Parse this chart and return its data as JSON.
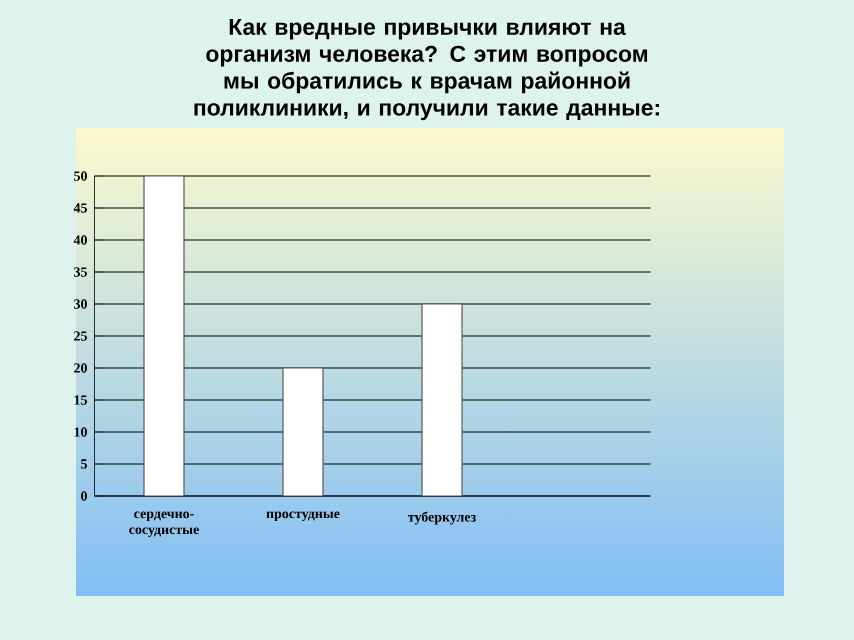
{
  "chart_data": {
    "type": "bar",
    "title": "Как вредные привычки влияют на организм человека? С этим вопросом мы обратились к врачам районной поликлиники, и получили такие данные:",
    "categories": [
      "сердечно-сосудистые",
      "простудные",
      "туберкулез",
      null
    ],
    "values": [
      50,
      20,
      30,
      null
    ],
    "color": "#ffffff",
    "ylim": [
      0,
      50
    ],
    "yticks": [
      0,
      5,
      10,
      15,
      20,
      25,
      30,
      35,
      40,
      45,
      50
    ],
    "grid": "y"
  }
}
